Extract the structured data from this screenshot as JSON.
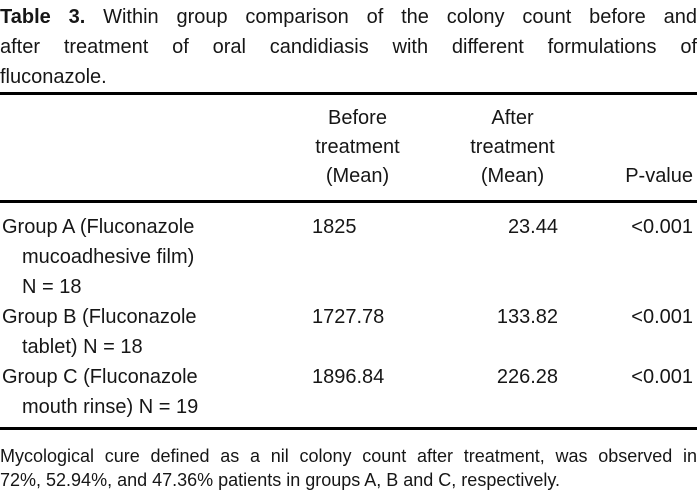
{
  "title": {
    "label": "Table 3.",
    "line1_rest": "Within group comparison of the colony count before and",
    "line2": "after treatment of oral candidiasis with different formulations of",
    "line3": "fluconazole."
  },
  "table": {
    "columns": {
      "before": {
        "lines": [
          "Before",
          "treatment",
          "(Mean)"
        ]
      },
      "after": {
        "lines": [
          "After",
          "treatment",
          "(Mean)"
        ]
      },
      "pvalue": "P-value"
    },
    "rows": [
      {
        "label_lines": [
          "Group A (Fluconazole",
          "mucoadhesive film)",
          "N = 18"
        ],
        "before": "1825",
        "after": "23.44",
        "pvalue": "<0.001"
      },
      {
        "label_lines": [
          "Group B (Fluconazole",
          "tablet) N = 18"
        ],
        "before": "1727.78",
        "after": "133.82",
        "pvalue": "<0.001"
      },
      {
        "label_lines": [
          "Group C (Fluconazole",
          "mouth rinse) N = 19"
        ],
        "before": "1896.84",
        "after": "226.28",
        "pvalue": "<0.001"
      }
    ]
  },
  "footnote": {
    "line1": "Mycological cure defined as a nil colony count after treatment, was observed in",
    "line2": "72%, 52.94%, and 47.36% patients in groups A, B and C, respectively."
  },
  "colors": {
    "text": "#161616",
    "rule": "#000000",
    "background": "#ffffff"
  }
}
